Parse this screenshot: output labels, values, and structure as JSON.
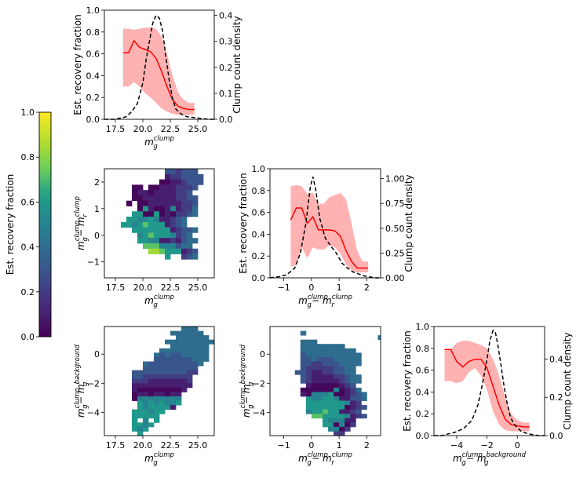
{
  "colorbar": {
    "label": "Est. recovery fraction",
    "ticks": [
      "0.0",
      "0.2",
      "0.4",
      "0.6",
      "0.8",
      "1.0"
    ],
    "range": [
      0,
      1
    ],
    "colormap": "viridis"
  },
  "colors": {
    "recovery_line": "#ff0000",
    "recovery_band": "#ffaaaa",
    "density_line": "#000000"
  },
  "chart_data": [
    {
      "id": "p1",
      "type": "line",
      "xlabel": {
        "base": "m",
        "sub": "g",
        "sup": "clump"
      },
      "ylabel": "Est. recovery fraction",
      "y2label": "Clump count density",
      "xlim": [
        16.5,
        26.5
      ],
      "ylim": [
        0,
        1
      ],
      "y2lim": [
        0,
        0.42
      ],
      "xticks": [
        "17.5",
        "20.0",
        "22.5",
        "25.0"
      ],
      "xtick_vals": [
        17.5,
        20,
        22.5,
        25
      ],
      "yticks": [
        "0.0",
        "0.2",
        "0.4",
        "0.6",
        "0.8",
        "1.0"
      ],
      "ytick_vals": [
        0,
        0.2,
        0.4,
        0.6,
        0.8,
        1.0
      ],
      "y2ticks": [
        "0.0",
        "0.1",
        "0.2",
        "0.3",
        "0.4"
      ],
      "y2tick_vals": [
        0,
        0.1,
        0.2,
        0.3,
        0.4
      ],
      "recovery": {
        "x": [
          18.2,
          18.7,
          19.2,
          19.7,
          20.2,
          20.7,
          21.2,
          21.7,
          22.2,
          22.7,
          23.2,
          23.7,
          24.2,
          24.7
        ],
        "mean": [
          0.61,
          0.61,
          0.72,
          0.66,
          0.64,
          0.62,
          0.56,
          0.44,
          0.3,
          0.18,
          0.12,
          0.1,
          0.09,
          0.09
        ],
        "low": [
          0.3,
          0.3,
          0.34,
          0.3,
          0.24,
          0.2,
          0.15,
          0.1,
          0.07,
          0.05,
          0.04,
          0.04,
          0.04,
          0.04
        ],
        "high": [
          0.83,
          0.83,
          0.82,
          0.83,
          0.84,
          0.84,
          0.83,
          0.76,
          0.6,
          0.4,
          0.25,
          0.18,
          0.15,
          0.15
        ]
      },
      "density": {
        "x": [
          16.5,
          17.5,
          18.0,
          18.5,
          19.0,
          19.5,
          20.0,
          20.3,
          20.6,
          20.9,
          21.2,
          21.5,
          21.8,
          22.1,
          22.4,
          22.7,
          23.0,
          23.5,
          24.0,
          25.0,
          26.0,
          26.5
        ],
        "y": [
          0.0,
          0.0,
          0.005,
          0.01,
          0.03,
          0.06,
          0.14,
          0.23,
          0.3,
          0.37,
          0.4,
          0.39,
          0.34,
          0.24,
          0.15,
          0.08,
          0.04,
          0.02,
          0.01,
          0.005,
          0.0,
          0.0
        ]
      }
    },
    {
      "id": "p2",
      "type": "heatmap",
      "xlabel": {
        "base": "m",
        "sub": "g",
        "sup": "clump"
      },
      "ylabel": {
        "base1": "m",
        "sub1": "g",
        "sup1": "clump",
        "minus": " − ",
        "base2": "m",
        "sub2": "r",
        "sup2": "clump"
      },
      "xlim": [
        16.5,
        26.5
      ],
      "ylim": [
        -1.6,
        2.5
      ],
      "xticks": [
        "17.5",
        "20.0",
        "22.5",
        "25.0"
      ],
      "xtick_vals": [
        17.5,
        20,
        22.5,
        25
      ],
      "yticks": [
        "−1",
        "0",
        "1",
        "2"
      ],
      "ytick_vals": [
        -1,
        0,
        1,
        2
      ],
      "grid": {
        "x0": 18,
        "dx": 0.5,
        "y0": -1.3,
        "dy": 0.2
      },
      "rows": [
        "...................",
        "...........EEEEE...",
        "...........EEEEDE..",
        "............DEDEE..",
        "..........EDEDCDE..",
        ".........DECDDDDE..",
        "........DCDEEEE....",
        "........DDCDDD.....",
        "........BCCDDDD....",
        ".......AABBCDDD....",
        "..AA.AABBBCCCD.....",
        "..ABBABBBBCCD......",
        "..AABBBBBBCCDD.....",
        ".A.AABBBBBBCCD.....",
        "...A8BAAB9BCCE.....",
        "..88AA8ABACCDE.....",
        ".889989BBCDE.......",
        "88987888BCDE.......",
        "..8888888BCDDE.....",
        "...9878889CDE......",
        "...8899BBCBDEE.....",
        "....777999DEE......",
        ".....667888BCD.....",
        "........8..CDE.....",
        "...................",
        "..................."
      ]
    },
    {
      "id": "p3",
      "type": "line",
      "xlabel": {
        "base1": "m",
        "sub1": "g",
        "sup1": "clump",
        "minus": " − ",
        "base2": "m",
        "sub2": "r",
        "sup2": "clump"
      },
      "ylabel": "Est. recovery fraction",
      "y2label": "Clump count density",
      "xlim": [
        -1.5,
        2.5
      ],
      "ylim": [
        0,
        1
      ],
      "y2lim": [
        0,
        1.1
      ],
      "xticks": [
        "−1",
        "0",
        "1",
        "2"
      ],
      "xtick_vals": [
        -1,
        0,
        1,
        2
      ],
      "yticks": [
        "0.0",
        "0.2",
        "0.4",
        "0.6",
        "0.8",
        "1.0"
      ],
      "ytick_vals": [
        0,
        0.2,
        0.4,
        0.6,
        0.8,
        1.0
      ],
      "y2ticks": [
        "0.00",
        "0.25",
        "0.50",
        "0.75",
        "1.00"
      ],
      "y2tick_vals": [
        0,
        0.25,
        0.5,
        0.75,
        1.0
      ],
      "recovery": {
        "x": [
          -0.75,
          -0.55,
          -0.35,
          -0.15,
          0.05,
          0.25,
          0.45,
          0.65,
          0.85,
          1.05,
          1.25,
          1.45,
          1.65,
          1.85,
          2.05
        ],
        "mean": [
          0.53,
          0.64,
          0.64,
          0.5,
          0.56,
          0.44,
          0.44,
          0.44,
          0.43,
          0.38,
          0.25,
          0.15,
          0.09,
          0.09,
          0.09
        ],
        "low": [
          0.1,
          0.12,
          0.28,
          0.18,
          0.28,
          0.26,
          0.26,
          0.3,
          0.28,
          0.22,
          0.12,
          0.07,
          0.05,
          0.05,
          0.05
        ],
        "high": [
          0.84,
          0.85,
          0.84,
          0.77,
          0.78,
          0.68,
          0.68,
          0.74,
          0.76,
          0.78,
          0.72,
          0.5,
          0.25,
          0.15,
          0.15
        ]
      },
      "density": {
        "x": [
          -1.5,
          -1.2,
          -0.9,
          -0.6,
          -0.4,
          -0.2,
          -0.05,
          0.05,
          0.15,
          0.3,
          0.5,
          0.7,
          0.9,
          1.1,
          1.3,
          1.5,
          1.7,
          1.9,
          2.1,
          2.3,
          2.5
        ],
        "y": [
          0.0,
          0.01,
          0.03,
          0.1,
          0.25,
          0.55,
          0.9,
          1.02,
          0.9,
          0.6,
          0.4,
          0.32,
          0.25,
          0.15,
          0.1,
          0.06,
          0.04,
          0.02,
          0.01,
          0.0,
          0.0
        ]
      }
    },
    {
      "id": "p4",
      "type": "heatmap",
      "xlabel": {
        "base": "m",
        "sub": "g",
        "sup": "clump"
      },
      "ylabel": {
        "base1": "m",
        "sub1": "g",
        "sup1": "clump",
        "minus": " − ",
        "base2": "m",
        "sub2": "g",
        "sup2": "background"
      },
      "xlim": [
        16.5,
        26.5
      ],
      "ylim": [
        -5.6,
        1.9
      ],
      "xticks": [
        "17.5",
        "20.0",
        "22.5",
        "25.0"
      ],
      "xtick_vals": [
        17.5,
        20,
        22.5,
        25
      ],
      "yticks": [
        "−4",
        "−2",
        "0"
      ],
      "ytick_vals": [
        -4,
        -2,
        0
      ],
      "grid": {
        "x0": 18,
        "dx": 0.5,
        "y0": -5.6,
        "dy": 0.3
      },
      "rows": [
        "...........EEE......",
        ".........EEEEEE.....",
        "..........EEEEEE....",
        "........EEEEEEEEE...",
        ".........EEEEEEE....",
        ".......EEEEEEEEE....",
        "......EDEDDEEEEE....",
        "......DDDDDDDEEE....",
        "....EDDDDDDDDDE.....",
        "....DDDDDDDDDD......",
        "..DDDDDDDDDDCC......",
        "..DDCCCCCCCCC.......",
        "..CCCBBBBBBBC.......",
        "..BBBBBBBBBBB.......",
        "..BAAAAAAAAB........",
        "..ABBABBABB.........",
        "..A99999999.........",
        "...89898998.........",
        "...898888B..........",
        "..888988............",
        "..88888.............",
        "..8.9.8.............",
        "..8898..............",
        "..898...............",
        "...8................"
      ]
    },
    {
      "id": "p5",
      "type": "heatmap",
      "xlabel": {
        "base1": "m",
        "sub1": "g",
        "sup1": "clump",
        "minus": " − ",
        "base2": "m",
        "sub2": "r",
        "sup2": "clump"
      },
      "ylabel": {
        "base1": "m",
        "sub1": "g",
        "sup1": "clump",
        "minus": " − ",
        "base2": "m",
        "sub2": "g",
        "sup2": "background"
      },
      "xlim": [
        -1.5,
        2.5
      ],
      "ylim": [
        -5.6,
        1.9
      ],
      "xticks": [
        "−1",
        "0",
        "1",
        "2"
      ],
      "xtick_vals": [
        -1,
        0,
        1,
        2
      ],
      "yticks": [
        "−4",
        "−2",
        "0"
      ],
      "ytick_vals": [
        -4,
        -2,
        0
      ],
      "grid": {
        "x0": -1.2,
        "dx": 0.2,
        "y0": -5.6,
        "dy": 0.3
      },
      "rows": [
        "...................",
        "....E..............",
        "..................E",
        "....EEE............",
        "....EEEEEEEE.......",
        "....EEEEEEEEEE.....",
        "....DEEEEEEEEEE....",
        "....DDEDDDEEEEE....",
        "....DDCCDDDEEEE....",
        "....DCCCCCDDEE.....",
        "...DDCBBCCDDEE.....",
        "....DCBBBBCCDEE....",
        "....DCBBBBBCDEE....",
        ".....BAAAAABCD.....",
        "....AAAAAA9ABCE....",
        "....BA9998AABCDE...",
        ".....899889BBDDE...",
        ".....88888889BC....",
        ".....8888888ABCD...",
        ".....988788BBCD....",
        "......7788889BCD...",
        "........8999BB.....",
        "........88A9AC.....",
        ".........99AC......",
        "..........CC......."
      ]
    },
    {
      "id": "p6",
      "type": "line",
      "xlabel": {
        "base1": "m",
        "sub1": "g",
        "sup1": "clump",
        "minus": " − ",
        "base2": "m",
        "sub2": "g",
        "sup2": "background"
      },
      "ylabel": "Est. recovery fraction",
      "y2label": "Clump count density",
      "xlim": [
        -5.5,
        1.8
      ],
      "ylim": [
        0,
        1
      ],
      "y2lim": [
        0,
        0.57
      ],
      "xticks": [
        "−4",
        "−2",
        "0"
      ],
      "xtick_vals": [
        -4,
        -2,
        0
      ],
      "yticks": [
        "0.0",
        "0.2",
        "0.4",
        "0.6",
        "0.8",
        "1.0"
      ],
      "ytick_vals": [
        0,
        0.2,
        0.4,
        0.6,
        0.8,
        1.0
      ],
      "y2ticks": [
        "0.0",
        "0.2",
        "0.4"
      ],
      "y2tick_vals": [
        0,
        0.2,
        0.4
      ],
      "recovery": {
        "x": [
          -4.8,
          -4.4,
          -4.0,
          -3.6,
          -3.2,
          -2.8,
          -2.4,
          -2.0,
          -1.6,
          -1.2,
          -0.8,
          -0.4,
          0.0,
          0.4,
          0.8
        ],
        "mean": [
          0.79,
          0.79,
          0.68,
          0.63,
          0.68,
          0.7,
          0.7,
          0.62,
          0.45,
          0.28,
          0.15,
          0.1,
          0.09,
          0.08,
          0.08
        ],
        "low": [
          0.5,
          0.5,
          0.48,
          0.5,
          0.58,
          0.62,
          0.55,
          0.42,
          0.22,
          0.1,
          0.05,
          0.04,
          0.04,
          0.04,
          0.04
        ],
        "high": [
          0.79,
          0.79,
          0.85,
          0.87,
          0.87,
          0.85,
          0.83,
          0.8,
          0.7,
          0.55,
          0.35,
          0.2,
          0.14,
          0.12,
          0.12
        ]
      },
      "density": {
        "x": [
          -5.5,
          -5.0,
          -4.5,
          -4.0,
          -3.5,
          -3.0,
          -2.6,
          -2.3,
          -2.0,
          -1.8,
          -1.6,
          -1.45,
          -1.3,
          -1.1,
          -0.9,
          -0.7,
          -0.5,
          -0.3,
          0.0,
          0.3,
          0.7,
          1.0,
          1.4,
          1.8
        ],
        "y": [
          0.0,
          0.0,
          0.01,
          0.02,
          0.04,
          0.08,
          0.16,
          0.27,
          0.4,
          0.5,
          0.55,
          0.54,
          0.48,
          0.38,
          0.27,
          0.18,
          0.11,
          0.07,
          0.04,
          0.02,
          0.01,
          0.005,
          0.0,
          0.0
        ]
      }
    }
  ]
}
